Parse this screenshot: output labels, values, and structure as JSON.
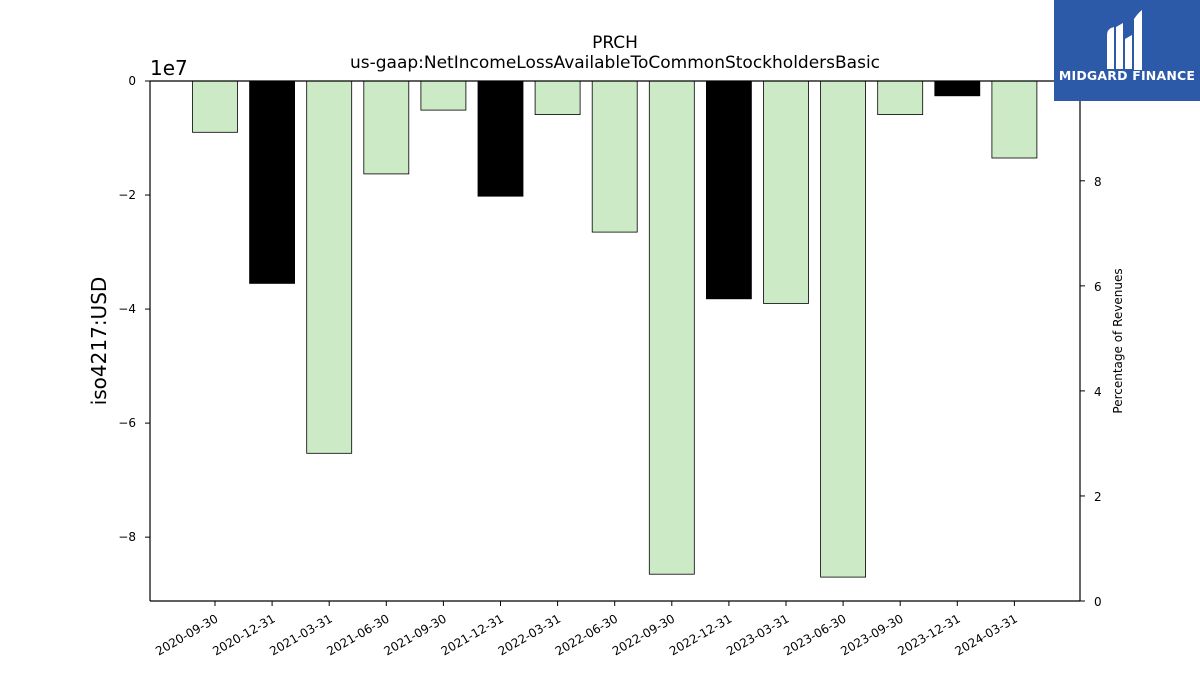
{
  "chart_data": {
    "type": "bar",
    "title": "PRCH",
    "subtitle": "us-gaap:NetIncomeLossAvailableToCommonStockholdersBasic",
    "ylabel": "iso4217:USD",
    "y_offset_label": "1e7",
    "y2label": "Percentage of Revenues",
    "categories": [
      "2020-09-30",
      "2020-12-31",
      "2021-03-31",
      "2021-06-30",
      "2021-09-30",
      "2021-12-31",
      "2022-03-31",
      "2022-06-30",
      "2022-09-30",
      "2022-12-31",
      "2023-03-31",
      "2023-06-30",
      "2023-09-30",
      "2023-12-31",
      "2024-03-31"
    ],
    "values": [
      -9000000,
      -35500000,
      -65300000,
      -16300000,
      -5100000,
      -20200000,
      -5900000,
      -26500000,
      -86500000,
      -38200000,
      -39000000,
      -87000000,
      -5900000,
      -2600000,
      -13500000
    ],
    "bar_colors": [
      "#cdeac7",
      "#000000",
      "#cdeac7",
      "#cdeac7",
      "#cdeac7",
      "#000000",
      "#cdeac7",
      "#cdeac7",
      "#cdeac7",
      "#000000",
      "#cdeac7",
      "#cdeac7",
      "#cdeac7",
      "#000000",
      "#cdeac7"
    ],
    "ylim": [
      -91200000,
      0
    ],
    "yticks": [
      0,
      -20000000,
      -40000000,
      -60000000,
      -80000000
    ],
    "ytick_labels": [
      "0",
      "−2",
      "−4",
      "−6",
      "−8"
    ],
    "y2lim": [
      0,
      9.9
    ],
    "y2ticks": [
      0,
      2,
      4,
      6,
      8
    ],
    "y2tick_labels": [
      "0",
      "2",
      "4",
      "6",
      "8"
    ],
    "grid": false,
    "legend": "none"
  },
  "logo": {
    "text": "MIDGARD FINANCE",
    "background": "#2c5aa8"
  }
}
